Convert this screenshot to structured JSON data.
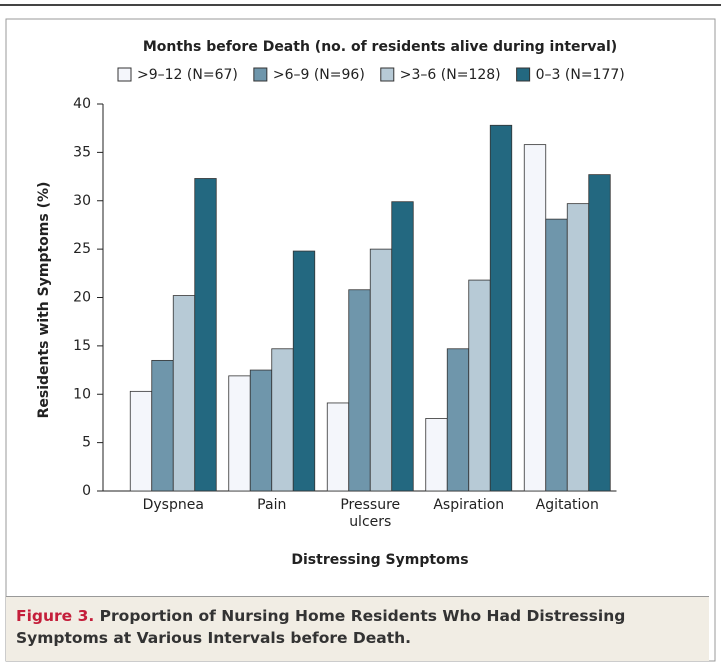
{
  "chart_data": {
    "type": "bar",
    "legend_title": "Months before Death (no. of residents alive during interval)",
    "x_label": "Distressing Symptoms",
    "y_label": "Residents with Symptoms (%)",
    "categories": [
      "Dyspnea",
      "Pain",
      "Pressure ulcers",
      "Aspiration",
      "Agitation"
    ],
    "series": [
      {
        "name": ">9–12 (N=67)",
        "color": "#f4f6fb",
        "values": [
          10.3,
          11.9,
          9.1,
          7.5,
          35.8
        ]
      },
      {
        "name": ">6–9 (N=96)",
        "color": "#6f96ab",
        "values": [
          13.5,
          12.5,
          20.8,
          14.7,
          28.1
        ]
      },
      {
        "name": ">3–6 (N=128)",
        "color": "#b7cad6",
        "values": [
          20.2,
          14.7,
          25.0,
          21.8,
          29.7
        ]
      },
      {
        "name": "0–3 (N=177)",
        "color": "#236880",
        "values": [
          32.3,
          24.8,
          29.9,
          37.8,
          32.7
        ]
      }
    ],
    "ylim": [
      0,
      40
    ],
    "yticks": [
      0,
      5,
      10,
      15,
      20,
      25,
      30,
      35,
      40
    ],
    "grid": false
  },
  "caption": {
    "label": "Figure 3.",
    "text": "Proportion of Nursing Home Residents Who Had Distressing Symptoms at Various Intervals before Death."
  }
}
